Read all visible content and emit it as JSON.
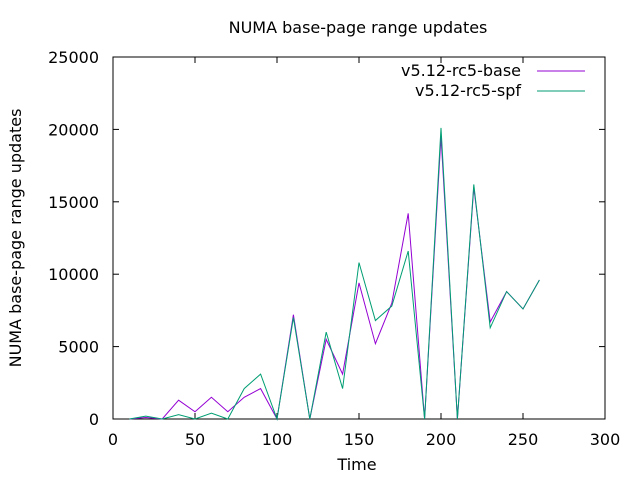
{
  "chart_data": {
    "type": "line",
    "title": "NUMA base-page range updates",
    "xlabel": "Time",
    "ylabel": "NUMA base-page range updates",
    "xlim": [
      0,
      300
    ],
    "ylim": [
      0,
      25000
    ],
    "xticks": [
      0,
      50,
      100,
      150,
      200,
      250,
      300
    ],
    "yticks": [
      0,
      5000,
      10000,
      15000,
      20000,
      25000
    ],
    "grid": false,
    "legend_position": "top-right",
    "series": [
      {
        "name": "v5.12-rc5-base",
        "color": "#9400d3",
        "x": [
          10,
          20,
          30,
          40,
          50,
          60,
          70,
          80,
          90,
          100,
          110,
          120,
          130,
          140,
          150,
          160,
          170,
          180,
          190,
          200,
          210,
          220,
          230,
          240,
          250,
          260
        ],
        "y": [
          0,
          100,
          0,
          1300,
          500,
          1500,
          500,
          1500,
          2100,
          0,
          7200,
          0,
          5500,
          3100,
          9400,
          5200,
          8000,
          14200,
          0,
          19500,
          0,
          16000,
          6700,
          8800,
          7600,
          9600
        ]
      },
      {
        "name": "v5.12-rc5-spf",
        "color": "#009e73",
        "x": [
          10,
          20,
          30,
          40,
          50,
          60,
          70,
          80,
          90,
          100,
          110,
          120,
          130,
          140,
          150,
          160,
          170,
          180,
          190,
          200,
          210,
          220,
          230,
          240,
          250,
          260
        ],
        "y": [
          0,
          200,
          0,
          300,
          0,
          400,
          0,
          2100,
          3100,
          0,
          7000,
          0,
          6000,
          2100,
          10800,
          6800,
          7800,
          11600,
          0,
          20100,
          0,
          16200,
          6300,
          8800,
          7600,
          9600
        ]
      }
    ]
  }
}
